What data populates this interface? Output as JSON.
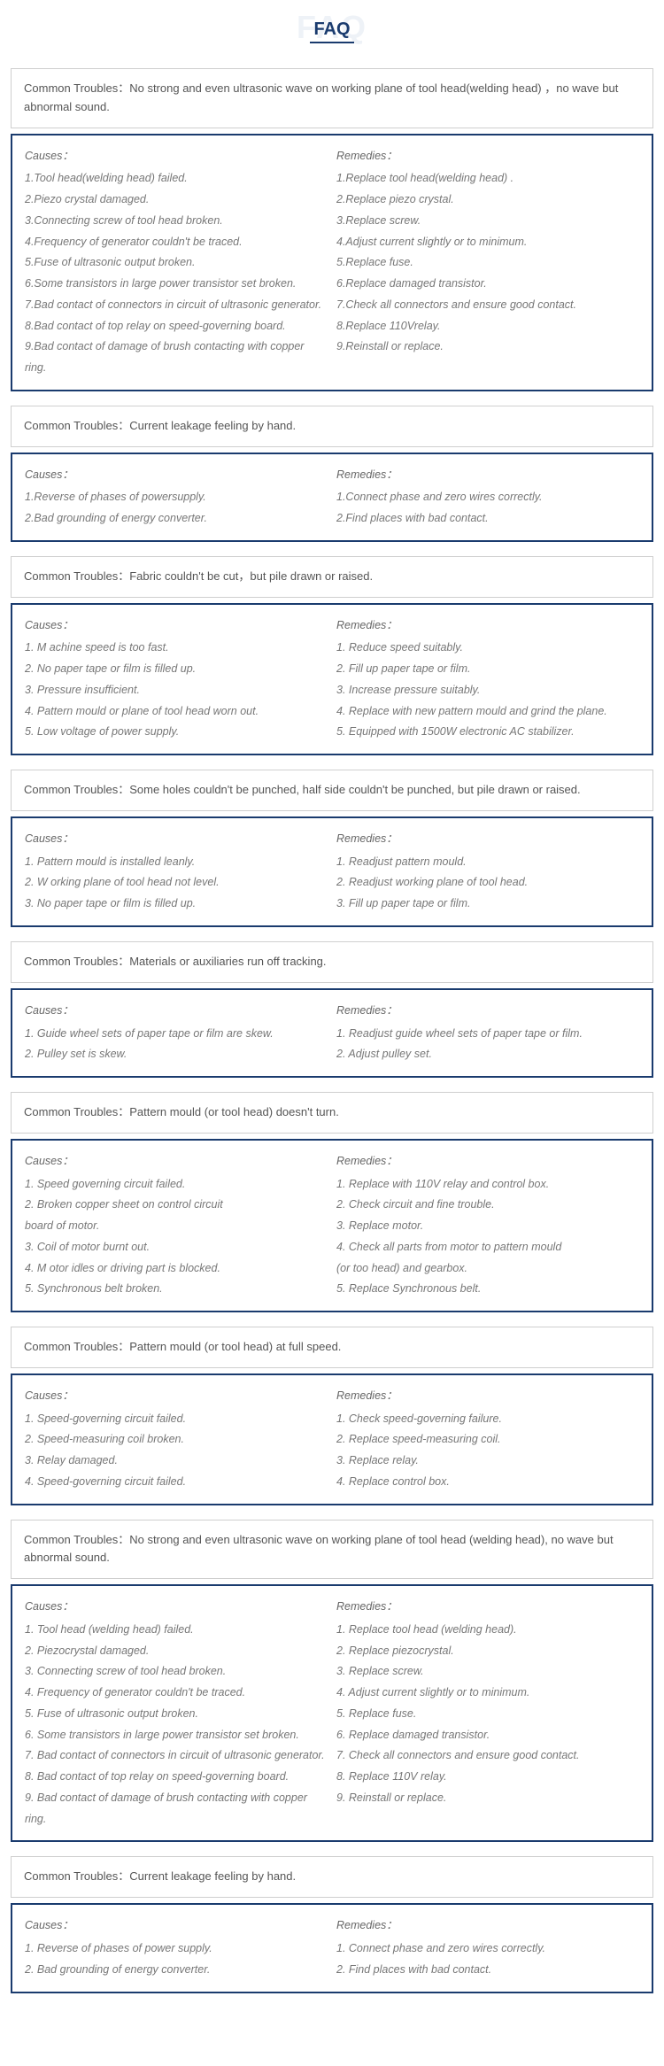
{
  "page": {
    "title_bg": "FAQ",
    "title": "FAQ",
    "trouble_label_prefix": "Common Troubles：",
    "causes_header": "Causes：",
    "remedies_header": "Remedies：",
    "colors": {
      "primary": "#1a3b6e",
      "border_light": "#cfcfcf",
      "text_muted": "#777",
      "bg_faint": "#eef2f7"
    }
  },
  "sections": [
    {
      "trouble": "No strong and even ultrasonic wave on working plane of tool head(welding head) ，no wave but abnormal sound.",
      "causes": [
        "1.Tool head(welding head) failed.",
        "2.Piezo crystal damaged.",
        "3.Connecting screw of tool head broken.",
        "4.Frequency of generator couldn't be traced.",
        "5.Fuse of ultrasonic output broken.",
        "6.Some transistors in large power transistor set broken.",
        "7.Bad contact of connectors in circuit of ultrasonic generator.",
        "8.Bad contact of top relay on speed-governing board.",
        "9.Bad contact of damage of brush contacting with copper ring."
      ],
      "remedies": [
        "1.Replace tool head(welding head) .",
        "2.Replace piezo crystal.",
        "3.Replace screw.",
        "4.Adjust current slightly or to minimum.",
        "5.Replace fuse.",
        "6.Replace damaged transistor.",
        "7.Check all connectors and ensure good contact.",
        "8.Replace 110Vrelay.",
        "9.Reinstall or replace."
      ]
    },
    {
      "trouble": "Current leakage feeling by hand.",
      "causes": [
        "1.Reverse of phases of powersupply.",
        "2.Bad grounding of energy converter."
      ],
      "remedies": [
        "1.Connect phase and zero wires correctly.",
        "2.Find places with bad contact."
      ]
    },
    {
      "trouble": "Fabric couldn't be cut，but pile drawn or raised.",
      "causes": [
        "1. M achine speed is too fast.",
        "2. No paper tape or film is filled up.",
        "3. Pressure insufficient.",
        "4. Pattern mould or plane of tool head worn out.",
        "5. Low voltage of power supply."
      ],
      "remedies": [
        "1. Reduce speed suitably.",
        "2. Fill up paper tape or film.",
        "3. Increase pressure suitably.",
        "4. Replace with new pattern mould and grind the plane.",
        "5. Equipped with 1500W electronic AC stabilizer."
      ]
    },
    {
      "trouble": "Some holes couldn't be punched, half side couldn't be punched, but pile drawn or raised.",
      "causes": [
        "1. Pattern mould is installed leanly.",
        "2. W orking plane of tool head not level.",
        "3. No paper tape or film is filled up."
      ],
      "remedies": [
        "1. Readjust pattern mould.",
        "2. Readjust working plane of tool head.",
        "3. Fill up paper tape or film."
      ]
    },
    {
      "trouble": "Materials or auxiliaries run off tracking.",
      "causes": [
        "1. Guide wheel sets of paper tape or film are skew.",
        "2. Pulley set is skew."
      ],
      "remedies": [
        "1. Readjust guide wheel sets of paper tape or film.",
        "2. Adjust pulley set."
      ]
    },
    {
      "trouble": "Pattern mould (or tool head) doesn't turn.",
      "causes": [
        "1. Speed governing circuit failed.",
        "2. Broken copper sheet on control circuit",
        "board of motor.",
        "3. Coil of motor burnt out.",
        "4. M otor idles or driving part is blocked.",
        "5. Synchronous belt broken."
      ],
      "remedies": [
        "1. Replace with 110V relay and control box.",
        "2. Check circuit and fine trouble.",
        "3. Replace motor.",
        "4. Check all parts from motor to pattern mould",
        "(or too head) and gearbox.",
        "5. Replace Synchronous belt."
      ]
    },
    {
      "trouble": "Pattern mould (or tool head) at full speed.",
      "causes": [
        "1. Speed-governing circuit failed.",
        "2. Speed-measuring coil broken.",
        "3. Relay damaged.",
        "4. Speed-governing circuit failed."
      ],
      "remedies": [
        "1. Check speed-governing failure.",
        "2. Replace speed-measuring coil.",
        "3. Replace relay.",
        "4. Replace control box."
      ]
    },
    {
      "trouble": "No strong and even ultrasonic wave on working plane of tool head (welding head), no wave but abnormal sound.",
      "causes": [
        "1. Tool head (welding head) failed.",
        "2. Piezocrystal damaged.",
        "3. Connecting screw of tool head broken.",
        "4. Frequency of generator couldn't be traced.",
        "5. Fuse of ultrasonic output broken.",
        "6. Some transistors in large power transistor set  broken.",
        "7. Bad contact of connectors in circuit of ultrasonic generator.",
        "8. Bad contact of top relay on speed-governing board.",
        "9. Bad contact of damage of brush contacting with copper ring."
      ],
      "remedies": [
        "1. Replace tool head (welding head).",
        "2. Replace piezocrystal.",
        "3. Replace screw.",
        "4. Adjust current slightly or to minimum.",
        "5. Replace fuse.",
        "6. Replace damaged transistor.",
        "7. Check all connectors and ensure good contact.",
        "8. Replace 110V relay.",
        "9. Reinstall or replace."
      ]
    },
    {
      "trouble": "Current leakage feeling by hand.",
      "causes": [
        "1. Reverse of phases of power supply.",
        "2. Bad grounding of energy converter."
      ],
      "remedies": [
        "1. Connect phase and zero wires correctly.",
        "2. Find places with bad contact."
      ]
    }
  ]
}
